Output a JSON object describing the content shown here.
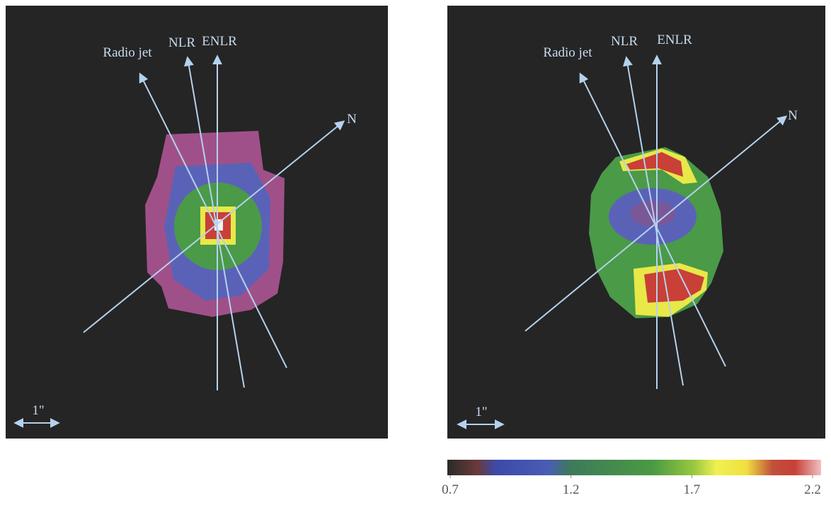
{
  "panels": [
    {
      "radio_jet": "Radio jet",
      "nlr": "NLR",
      "enlr": "ENLR",
      "north": "N",
      "scale": "1\""
    },
    {
      "radio_jet": "Radio jet",
      "nlr": "NLR",
      "enlr": "ENLR",
      "north": "N",
      "scale": "1\""
    }
  ],
  "colorbar": {
    "lim": [
      0.7,
      2.2
    ],
    "ticks": [
      0.7,
      1.2,
      1.7,
      2.2
    ]
  }
}
